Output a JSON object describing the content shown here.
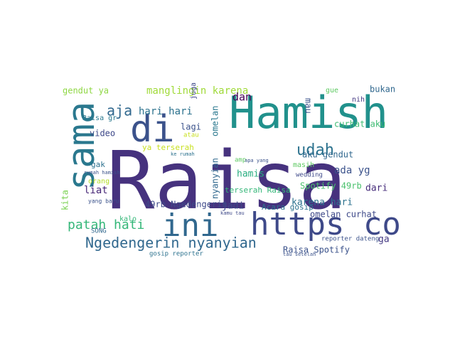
{
  "chart_data": {
    "type": "wordcloud",
    "words": [
      {
        "text": "Raisa",
        "color": "#46327e"
      },
      {
        "text": "Hamish",
        "color": "#21918c"
      },
      {
        "text": "sama",
        "color": "#2a788e"
      },
      {
        "text": "di",
        "color": "#3b528b"
      },
      {
        "text": "https co",
        "color": "#3e4989"
      },
      {
        "text": "ini",
        "color": "#31688e"
      },
      {
        "text": "udah",
        "color": "#2c728e"
      },
      {
        "text": "Ngedengerin nyanyian",
        "color": "#31688e"
      },
      {
        "text": "patah hati",
        "color": "#35b779"
      },
      {
        "text": "aja",
        "color": "#31688e"
      },
      {
        "text": "manglingin karena",
        "color": "#a0da39"
      },
      {
        "text": "gendut ya",
        "color": "#8fd744"
      },
      {
        "text": "hari hari",
        "color": "#2c728e"
      },
      {
        "text": "dan",
        "color": "#440154"
      },
      {
        "text": "mau",
        "color": "#3b528b"
      },
      {
        "text": "gue",
        "color": "#5ec962"
      },
      {
        "text": "bukan",
        "color": "#31688e"
      },
      {
        "text": "nih",
        "color": "#443983"
      },
      {
        "text": "curhat aku",
        "color": "#3fbc73"
      },
      {
        "text": "ya terserah",
        "color": "#c8e020"
      },
      {
        "text": "lagi",
        "color": "#3b528b"
      },
      {
        "text": "jadi",
        "color": "#3e4989"
      },
      {
        "text": "hamis",
        "color": "#28ae80"
      },
      {
        "text": "terserah Raisa",
        "color": "#35b779"
      },
      {
        "text": "Spotify 49rb",
        "color": "#4ac16d"
      },
      {
        "text": "karena hari",
        "color": "#2c728e"
      },
      {
        "text": "omelan curhat",
        "color": "#3e4989"
      },
      {
        "text": "ada yg",
        "color": "#3b528b"
      },
      {
        "text": "aku gendut",
        "color": "#31688e"
      },
      {
        "text": "dari",
        "color": "#472d7b"
      },
      {
        "text": "ga",
        "color": "#443983"
      },
      {
        "text": "Raisa Spotify",
        "color": "#3b528b"
      },
      {
        "text": "49rb Ngedengerin",
        "color": "#3e4989"
      },
      {
        "text": "liat",
        "color": "#482878"
      },
      {
        "text": "video",
        "color": "#3e4989"
      },
      {
        "text": "gak",
        "color": "#2d708e"
      },
      {
        "text": "kita",
        "color": "#7ad151"
      },
      {
        "text": "nyanyian",
        "color": "#31688e"
      },
      {
        "text": "omelan",
        "color": "#2a788e"
      },
      {
        "text": "Acara gosip",
        "color": "#2c728e"
      },
      {
        "text": "gosip reporter",
        "color": "#2c728e"
      },
      {
        "text": "reporter dateng",
        "color": "#3b528b"
      },
      {
        "text": "SONG",
        "color": "#31688e"
      },
      {
        "text": "Raisa gr",
        "color": "#2a788e"
      },
      {
        "text": "juga",
        "color": "#3e4989"
      },
      {
        "text": "orang",
        "color": "#b5de2b"
      },
      {
        "text": "masih",
        "color": "#5ec962"
      },
      {
        "text": "wedding",
        "color": "#3e4989"
      },
      {
        "text": "kalo",
        "color": "#35b779"
      },
      {
        "text": "amp",
        "color": "#5ec962"
      },
      {
        "text": "atau",
        "color": "#c8e020"
      },
      {
        "text": "yang baru",
        "color": "#3b528b"
      },
      {
        "text": "kamu tau",
        "color": "#3e4989"
      },
      {
        "text": "ke rumah",
        "color": "#2c728e"
      },
      {
        "text": "rumah hamish",
        "color": "#3b528b"
      },
      {
        "text": "tau setelah",
        "color": "#3b528b"
      },
      {
        "text": "apa yang",
        "color": "#3b528b"
      }
    ]
  }
}
